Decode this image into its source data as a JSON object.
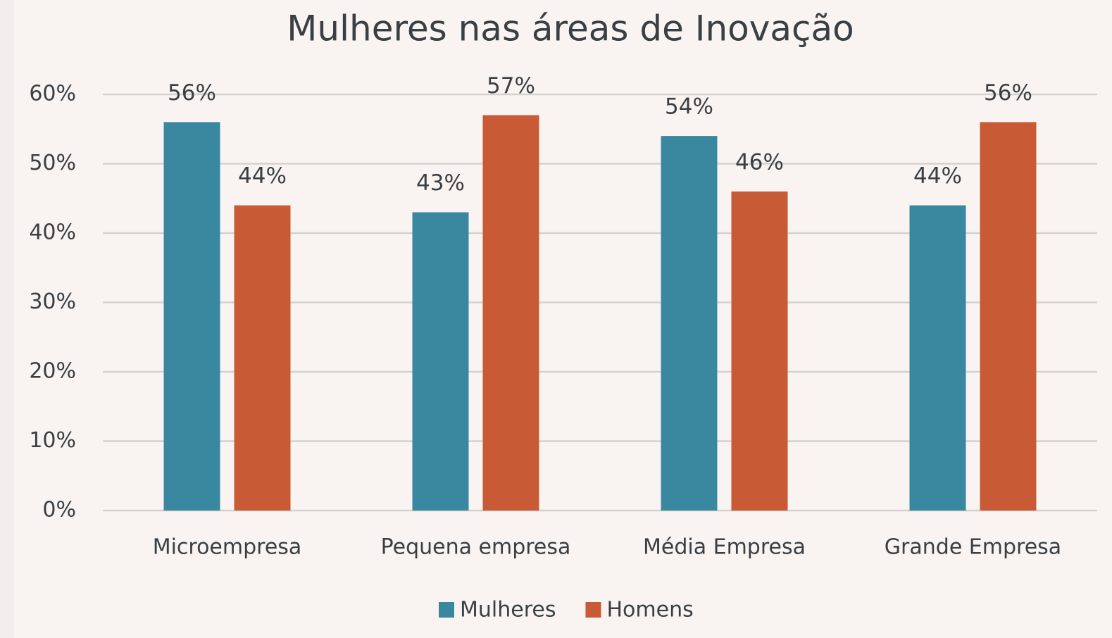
{
  "chart_data": {
    "type": "bar",
    "title": "Mulheres nas áreas de Inovação",
    "categories": [
      "Microempresa",
      "Pequena empresa",
      "Média Empresa",
      "Grande Empresa"
    ],
    "series": [
      {
        "name": "Mulheres",
        "color": "#3a87a0",
        "values": [
          56,
          43,
          54,
          44
        ],
        "value_labels": [
          "56%",
          "43%",
          "54%",
          "44%"
        ]
      },
      {
        "name": "Homens",
        "color": "#c85a36",
        "values": [
          44,
          57,
          46,
          56
        ],
        "value_labels": [
          "44%",
          "57%",
          "46%",
          "56%"
        ]
      }
    ],
    "ylim": [
      0,
      60
    ],
    "yticks": [
      {
        "value": 0,
        "label": "0%"
      },
      {
        "value": 10,
        "label": "10%"
      },
      {
        "value": 20,
        "label": "20%"
      },
      {
        "value": 30,
        "label": "30%"
      },
      {
        "value": 40,
        "label": "40%"
      },
      {
        "value": 50,
        "label": "50%"
      },
      {
        "value": 60,
        "label": "60%"
      }
    ],
    "grid": true,
    "legend": "bottom"
  }
}
